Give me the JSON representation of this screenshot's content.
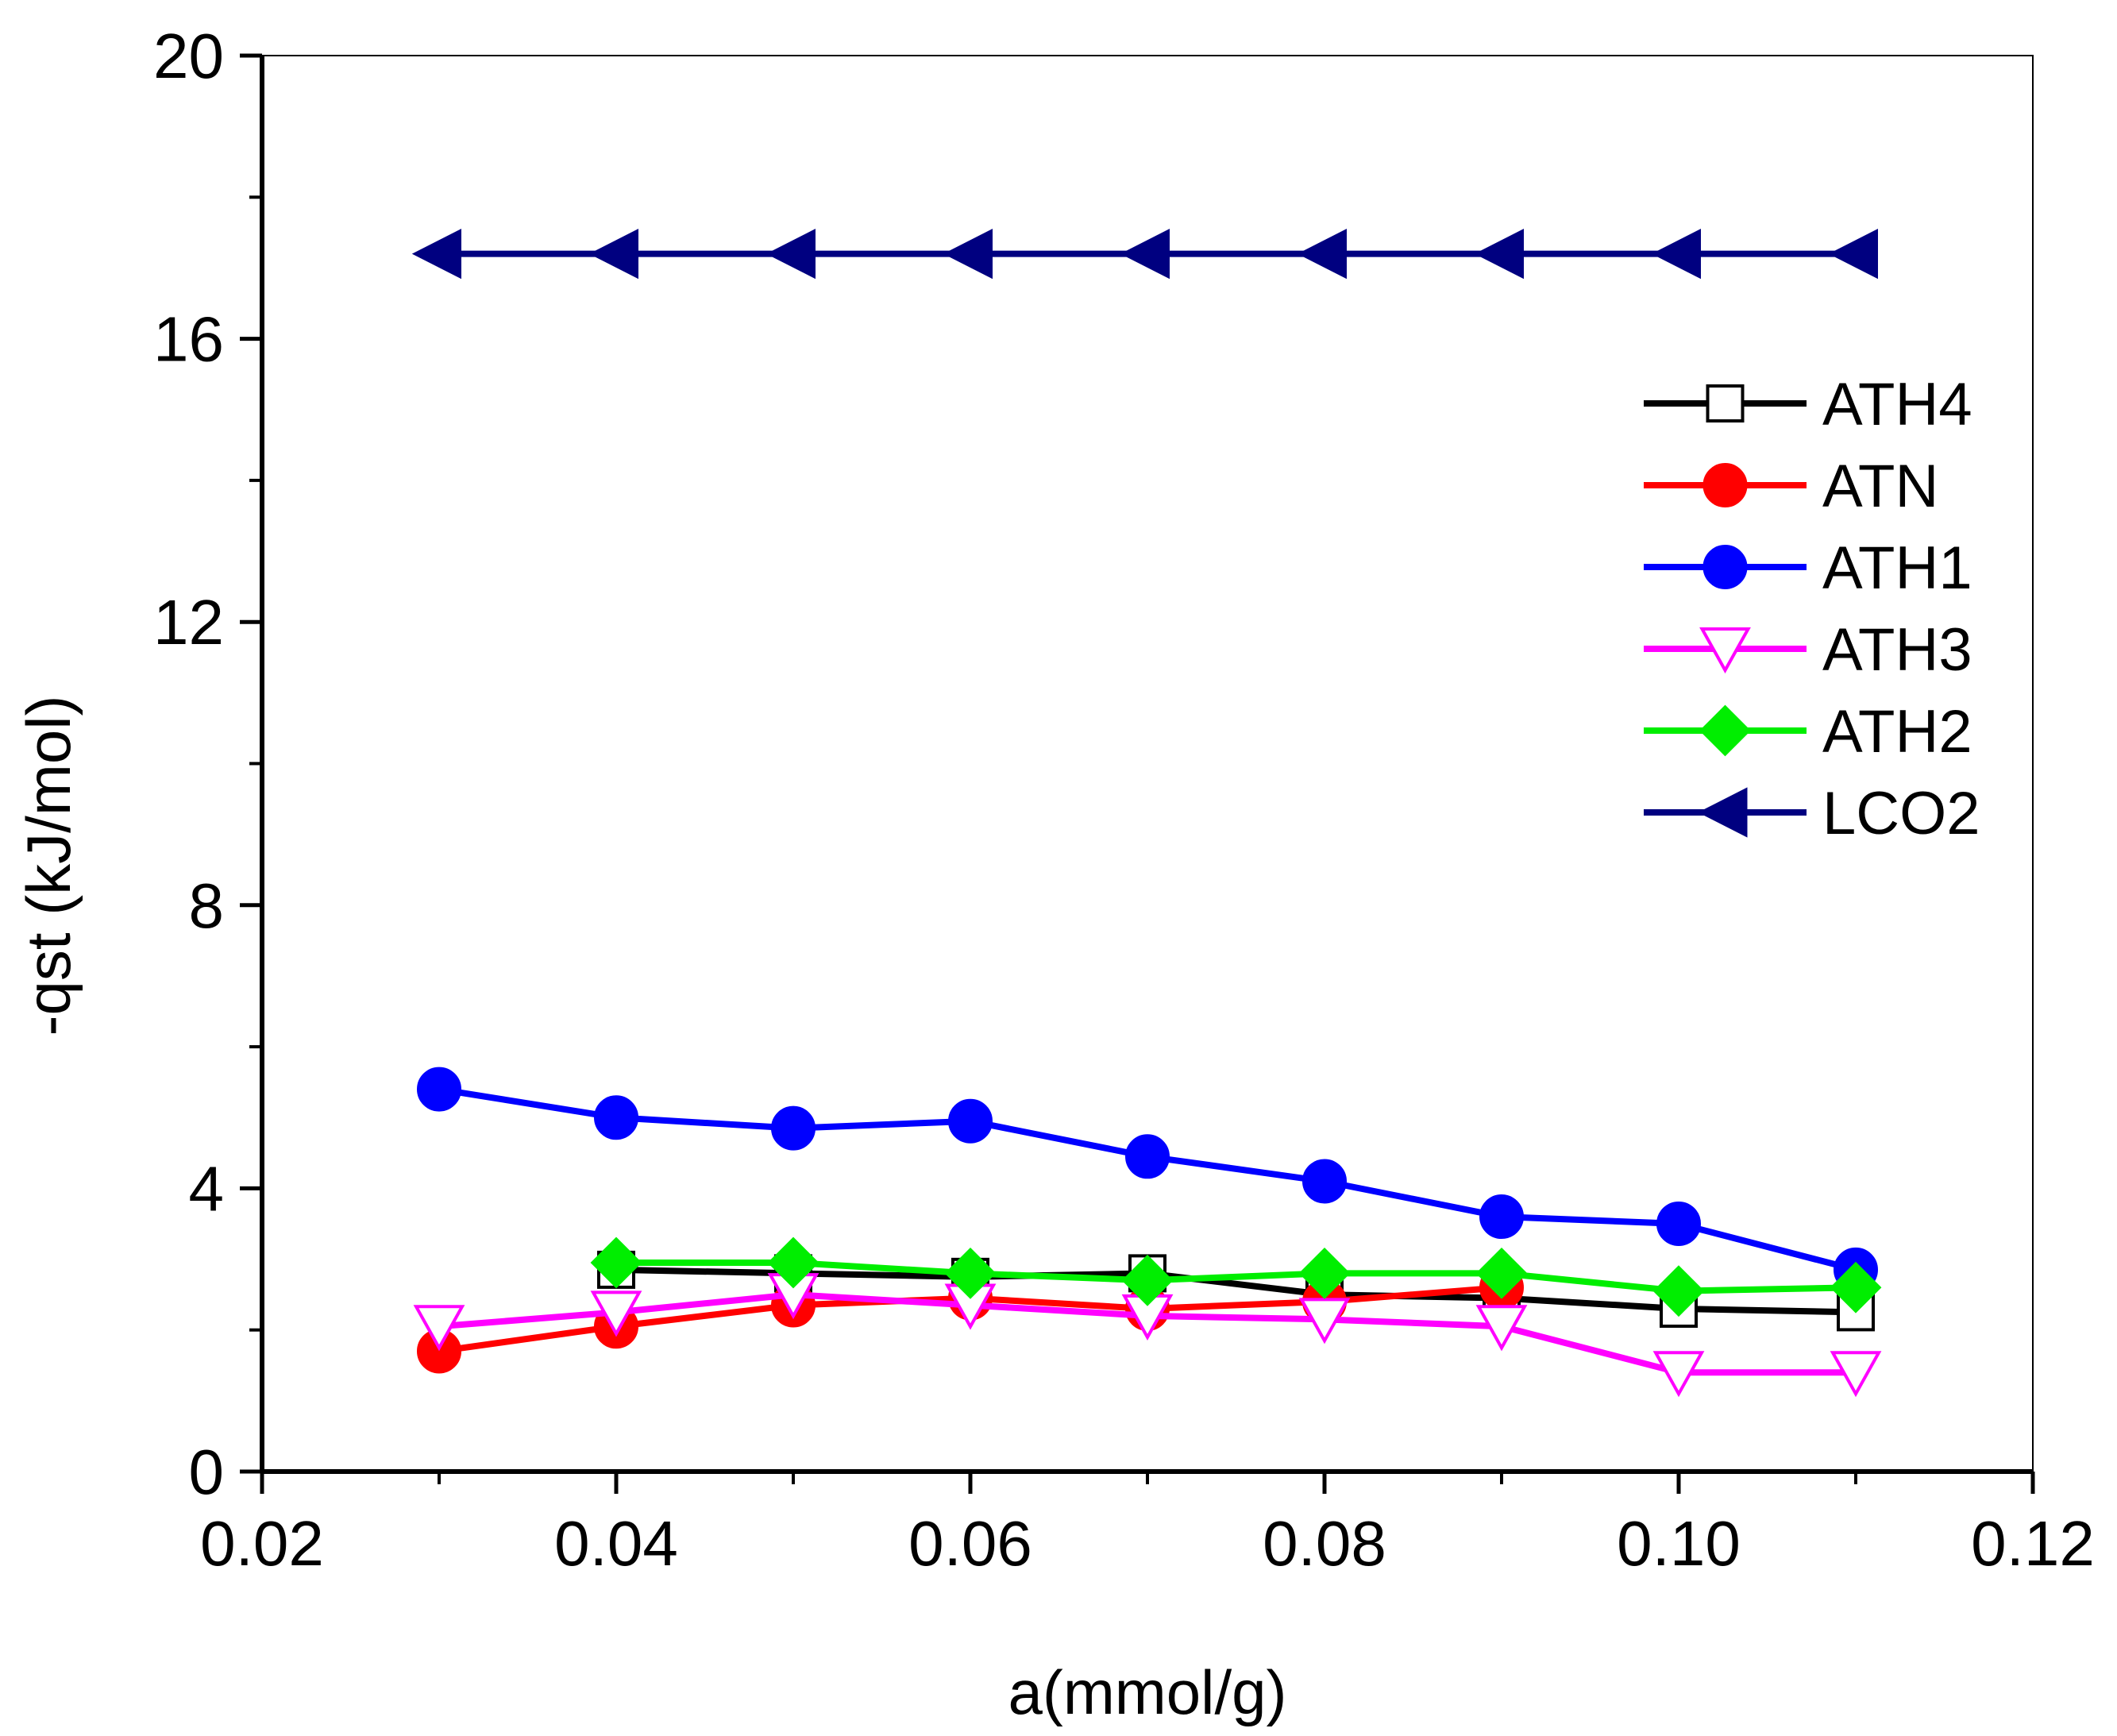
{
  "chart_data": {
    "type": "line",
    "title": "",
    "xlabel": "a(mmol/g)",
    "ylabel": "-qst (kJ/mol)",
    "xlim": [
      0.02,
      0.12
    ],
    "ylim": [
      0,
      20
    ],
    "xticks": [
      0.02,
      0.04,
      0.06,
      0.08,
      0.1,
      0.12
    ],
    "xtick_labels": [
      "0.02",
      "0.04",
      "0.06",
      "0.08",
      "0.10",
      "0.12"
    ],
    "yticks": [
      0,
      4,
      8,
      12,
      16,
      20
    ],
    "ytick_labels": [
      "0",
      "4",
      "8",
      "12",
      "16",
      "20"
    ],
    "grid": false,
    "legend_position": "upper-right",
    "series": [
      {
        "name": "ATH4",
        "color": "#000000",
        "marker": "square-open",
        "x": [
          0.04,
          0.05,
          0.06,
          0.07,
          0.08,
          0.09,
          0.1,
          0.11
        ],
        "y": [
          2.85,
          2.8,
          2.75,
          2.8,
          2.5,
          2.45,
          2.3,
          2.25
        ]
      },
      {
        "name": "ATN",
        "color": "#ff0000",
        "marker": "circle-filled",
        "x": [
          0.03,
          0.04,
          0.05,
          0.06,
          0.07,
          0.08,
          0.09
        ],
        "y": [
          1.7,
          2.05,
          2.35,
          2.45,
          2.3,
          2.4,
          2.6
        ]
      },
      {
        "name": "ATH1",
        "color": "#0000ff",
        "marker": "circle-filled",
        "x": [
          0.03,
          0.04,
          0.05,
          0.06,
          0.07,
          0.08,
          0.09,
          0.1,
          0.11
        ],
        "y": [
          5.4,
          5.0,
          4.85,
          4.95,
          4.45,
          4.1,
          3.6,
          3.5,
          2.85
        ]
      },
      {
        "name": "ATH3",
        "color": "#ff00ff",
        "marker": "triangle-down-open",
        "x": [
          0.03,
          0.04,
          0.05,
          0.06,
          0.07,
          0.08,
          0.09,
          0.1,
          0.11
        ],
        "y": [
          2.05,
          2.25,
          2.5,
          2.35,
          2.2,
          2.15,
          2.05,
          1.4,
          1.4
        ]
      },
      {
        "name": "ATH2",
        "color": "#00ee00",
        "marker": "diamond-filled",
        "x": [
          0.04,
          0.05,
          0.06,
          0.07,
          0.08,
          0.09,
          0.1,
          0.11
        ],
        "y": [
          2.95,
          2.95,
          2.8,
          2.7,
          2.8,
          2.8,
          2.55,
          2.6
        ]
      },
      {
        "name": "LCO2",
        "color": "#000080",
        "marker": "triangle-left-filled",
        "x": [
          0.03,
          0.04,
          0.05,
          0.06,
          0.07,
          0.08,
          0.09,
          0.1,
          0.11
        ],
        "y": [
          17.2,
          17.2,
          17.2,
          17.2,
          17.2,
          17.2,
          17.2,
          17.2,
          17.2
        ]
      }
    ]
  }
}
